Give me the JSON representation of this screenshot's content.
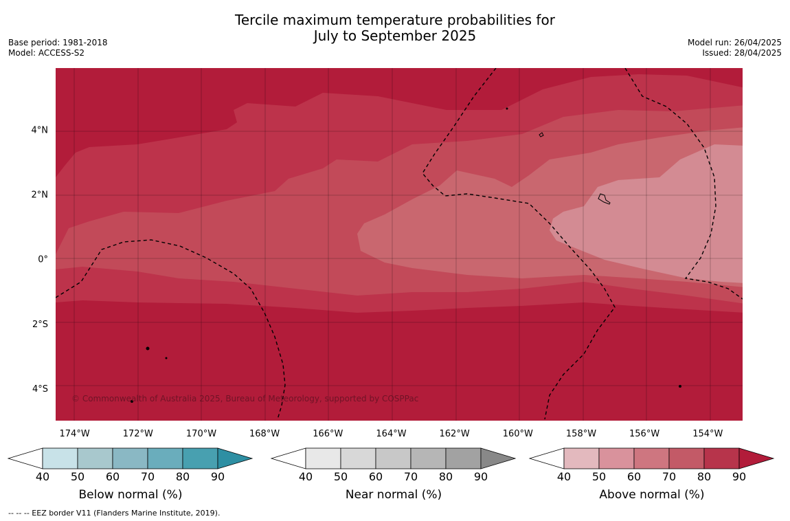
{
  "title": {
    "line1": "Tercile maximum temperature probabilities for",
    "line2": "July to September 2025"
  },
  "meta_left": {
    "base_period": "Base period: 1981-2018",
    "model": "Model: ACCESS-S2"
  },
  "meta_right": {
    "model_run": "Model run: 26/04/2025",
    "issued": "Issued: 28/04/2025"
  },
  "map": {
    "copyright": "© Commonwealth of Australia 2025, Bureau of Meteorology, supported by COSPPac",
    "lon_range": [
      -174.6,
      -152.9
    ],
    "lat_range": [
      -5.0,
      5.9
    ],
    "lon_ticks": [
      {
        "value": -174,
        "label": "174°W"
      },
      {
        "value": -172,
        "label": "172°W"
      },
      {
        "value": -170,
        "label": "170°W"
      },
      {
        "value": -168,
        "label": "168°W"
      },
      {
        "value": -166,
        "label": "166°W"
      },
      {
        "value": -164,
        "label": "164°W"
      },
      {
        "value": -162,
        "label": "162°W"
      },
      {
        "value": -160,
        "label": "160°W"
      },
      {
        "value": -158,
        "label": "158°W"
      },
      {
        "value": -156,
        "label": "156°W"
      },
      {
        "value": -154,
        "label": "154°W"
      }
    ],
    "lat_ticks": [
      {
        "value": 4,
        "label": "4°N"
      },
      {
        "value": 2,
        "label": "2°N"
      },
      {
        "value": 0,
        "label": "0°"
      },
      {
        "value": -2,
        "label": "2°S"
      },
      {
        "value": -4,
        "label": "4°S"
      }
    ],
    "dominant_category": "Above normal",
    "probability_bands": [
      {
        "level": 90,
        "color": "#b21c3a"
      },
      {
        "level": 80,
        "color": "#bd334b"
      },
      {
        "level": 70,
        "color": "#c24a59"
      },
      {
        "level": 60,
        "color": "#c9676f"
      },
      {
        "level": 50,
        "color": "#d38b93"
      }
    ]
  },
  "colorbars": [
    {
      "id": "below",
      "label": "Below normal (%)",
      "ticks": [
        "40",
        "50",
        "60",
        "70",
        "80",
        "90"
      ],
      "colors": [
        "#ffffff",
        "#c8e2e8",
        "#a8c8cd",
        "#8ab8c4",
        "#6aadbc",
        "#48a0b0",
        "#2e8fa3"
      ]
    },
    {
      "id": "near",
      "label": "Near normal (%)",
      "ticks": [
        "40",
        "50",
        "60",
        "70",
        "80",
        "90"
      ],
      "colors": [
        "#ffffff",
        "#e8e8e8",
        "#d8d8d8",
        "#c8c8c8",
        "#b6b6b6",
        "#a2a2a2",
        "#888888"
      ]
    },
    {
      "id": "above",
      "label": "Above normal (%)",
      "ticks": [
        "40",
        "50",
        "60",
        "70",
        "80",
        "90"
      ],
      "colors": [
        "#ffffff",
        "#e3b9be",
        "#d9929c",
        "#ce7680",
        "#c35a67",
        "#b7344b",
        "#b21c3a"
      ]
    }
  ],
  "footnote": "--  --  -- EEZ border V11 (Flanders Marine Institute, 2019)."
}
